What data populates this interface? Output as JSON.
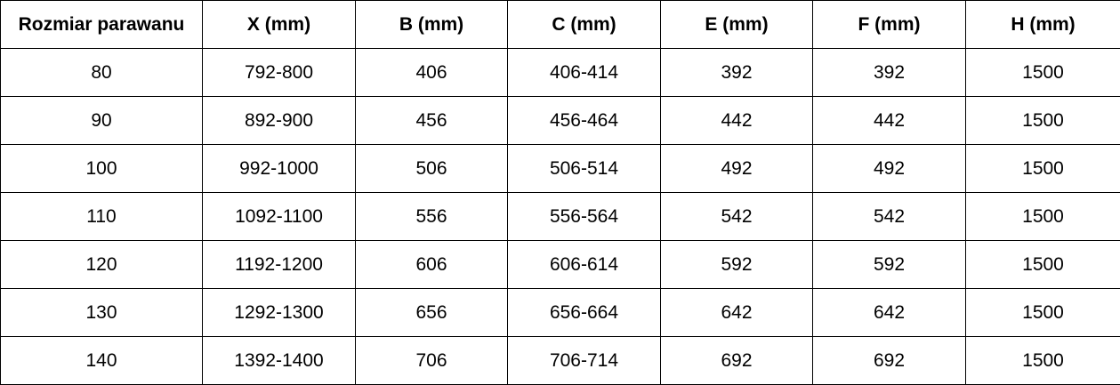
{
  "table": {
    "headers": [
      "Rozmiar parawanu",
      "X (mm)",
      "B (mm)",
      "C (mm)",
      "E (mm)",
      "F (mm)",
      "H (mm)"
    ],
    "rows": [
      [
        "80",
        "792-800",
        "406",
        "406-414",
        "392",
        "392",
        "1500"
      ],
      [
        "90",
        "892-900",
        "456",
        "456-464",
        "442",
        "442",
        "1500"
      ],
      [
        "100",
        "992-1000",
        "506",
        "506-514",
        "492",
        "492",
        "1500"
      ],
      [
        "110",
        "1092-1100",
        "556",
        "556-564",
        "542",
        "542",
        "1500"
      ],
      [
        "120",
        "1192-1200",
        "606",
        "606-614",
        "592",
        "592",
        "1500"
      ],
      [
        "130",
        "1292-1300",
        "656",
        "656-664",
        "642",
        "642",
        "1500"
      ],
      [
        "140",
        "1392-1400",
        "706",
        "706-714",
        "692",
        "692",
        "1500"
      ]
    ]
  }
}
